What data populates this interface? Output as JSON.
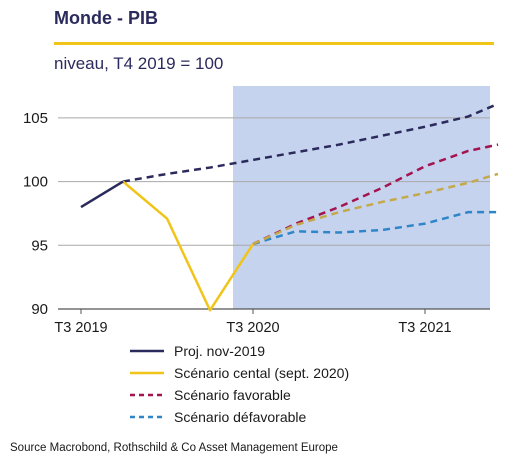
{
  "header": {
    "title": "Monde - PIB",
    "subtitle": "niveau, T4 2019 = 100"
  },
  "colors": {
    "title": "#2b2a5c",
    "rule": "#f0c419",
    "shade": "#c6d3ee",
    "grid": "#a8a8a8"
  },
  "chart_data": {
    "type": "line",
    "title": "Monde - PIB",
    "subtitle": "niveau, T4 2019 = 100",
    "xlabel": "",
    "ylabel": "",
    "x": [
      "T3 2019",
      "T4 2019",
      "T1 2020",
      "T2 2020",
      "T3 2020",
      "T4 2020",
      "T1 2021",
      "T2 2021",
      "T3 2021",
      "T4 2021"
    ],
    "x_tick_labels": [
      {
        "x": "T3 2019",
        "label": "T3 2019"
      },
      {
        "x": "T3 2020",
        "label": "T3 2020"
      },
      {
        "x": "T3 2021",
        "label": "T3 2021"
      }
    ],
    "ylim": [
      90,
      107.5
    ],
    "y_ticks": [
      90,
      95,
      100,
      105
    ],
    "grid": "horizontal",
    "shaded_region": {
      "from": "T3 2020",
      "to": "end",
      "color": "#c6d3ee"
    },
    "series": [
      {
        "name": "Proj. nov-2019",
        "color": "#2b2a5c",
        "style": "solid-then-dashed",
        "solid": [
          [
            "T3 2019",
            98.0
          ],
          [
            "T4 2019",
            100.0
          ]
        ],
        "dashed": [
          [
            "T4 2019",
            100.0
          ],
          [
            "T1 2020",
            100.6
          ],
          [
            "T2 2020",
            101.1
          ],
          [
            "T3 2020",
            101.7
          ],
          [
            "T4 2020",
            102.3
          ],
          [
            "T1 2021",
            102.9
          ],
          [
            "T2 2021",
            103.6
          ],
          [
            "T3 2021",
            104.3
          ],
          [
            "T4 2021",
            105.1
          ],
          [
            "end",
            106.1
          ]
        ]
      },
      {
        "name": "Scénario cental (sept. 2020)",
        "color": "#f0c419",
        "style": "solid-then-dashed",
        "solid": [
          [
            "T4 2019",
            100.0
          ],
          [
            "T1 2020",
            97.1
          ],
          [
            "T2 2020",
            89.9
          ],
          [
            "T3 2020",
            95.1
          ]
        ],
        "dashed": [
          [
            "T3 2020",
            95.1
          ],
          [
            "T4 2020",
            96.6
          ],
          [
            "T1 2021",
            97.6
          ],
          [
            "T2 2021",
            98.4
          ],
          [
            "T3 2021",
            99.1
          ],
          [
            "T4 2021",
            99.9
          ],
          [
            "end",
            100.6
          ]
        ],
        "dashed_color": "#c4a94a"
      },
      {
        "name": "Scénario favorable",
        "color": "#a3134f",
        "style": "dashed",
        "dashed": [
          [
            "T3 2020",
            95.1
          ],
          [
            "T4 2020",
            96.7
          ],
          [
            "T1 2021",
            98.0
          ],
          [
            "T2 2021",
            99.5
          ],
          [
            "T3 2021",
            101.2
          ],
          [
            "T4 2021",
            102.4
          ],
          [
            "end",
            102.9
          ]
        ]
      },
      {
        "name": "Scénario défavorable",
        "color": "#2e86c8",
        "style": "dashed",
        "dashed": [
          [
            "T3 2020",
            95.1
          ],
          [
            "T4 2020",
            96.1
          ],
          [
            "T1 2021",
            96.0
          ],
          [
            "T2 2021",
            96.2
          ],
          [
            "T3 2021",
            96.7
          ],
          [
            "T4 2021",
            97.6
          ],
          [
            "end",
            97.6
          ]
        ]
      }
    ],
    "legend": [
      "Proj. nov-2019",
      "Scénario cental (sept. 2020)",
      "Scénario favorable",
      "Scénario défavorable"
    ]
  },
  "legend": {
    "items": [
      {
        "label": "Proj. nov-2019",
        "color": "#2b2a5c",
        "dash": "solid"
      },
      {
        "label": "Scénario cental (sept. 2020)",
        "color": "#f0c419",
        "dash": "solid"
      },
      {
        "label": "Scénario favorable",
        "color": "#a3134f",
        "dash": "dashed"
      },
      {
        "label": "Scénario défavorable",
        "color": "#2e86c8",
        "dash": "dashed"
      }
    ]
  },
  "source": "Source Macrobond, Rothschild & Co Asset Management Europe"
}
